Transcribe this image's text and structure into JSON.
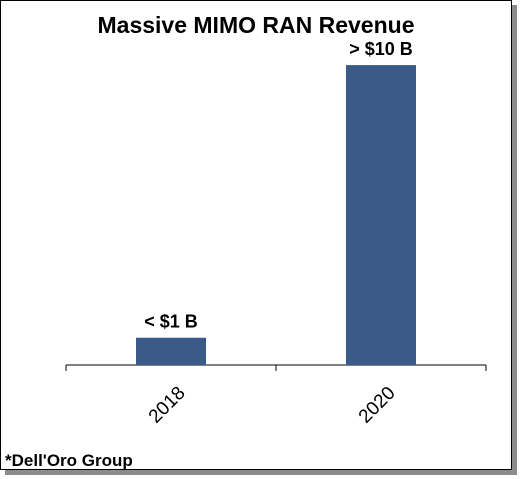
{
  "chart_data": {
    "type": "bar",
    "title": "Massive MIMO RAN Revenue",
    "categories": [
      "2018",
      "2020"
    ],
    "values": [
      1,
      11
    ],
    "data_labels": [
      "< $1 B",
      "> $10 B"
    ],
    "unit": "$B",
    "ylim": [
      0,
      11.7
    ],
    "grid": false,
    "legend": "none",
    "colors": {
      "bar": "#3A5B87",
      "axis": "#000000"
    },
    "source": "*Dell'Oro Group"
  }
}
